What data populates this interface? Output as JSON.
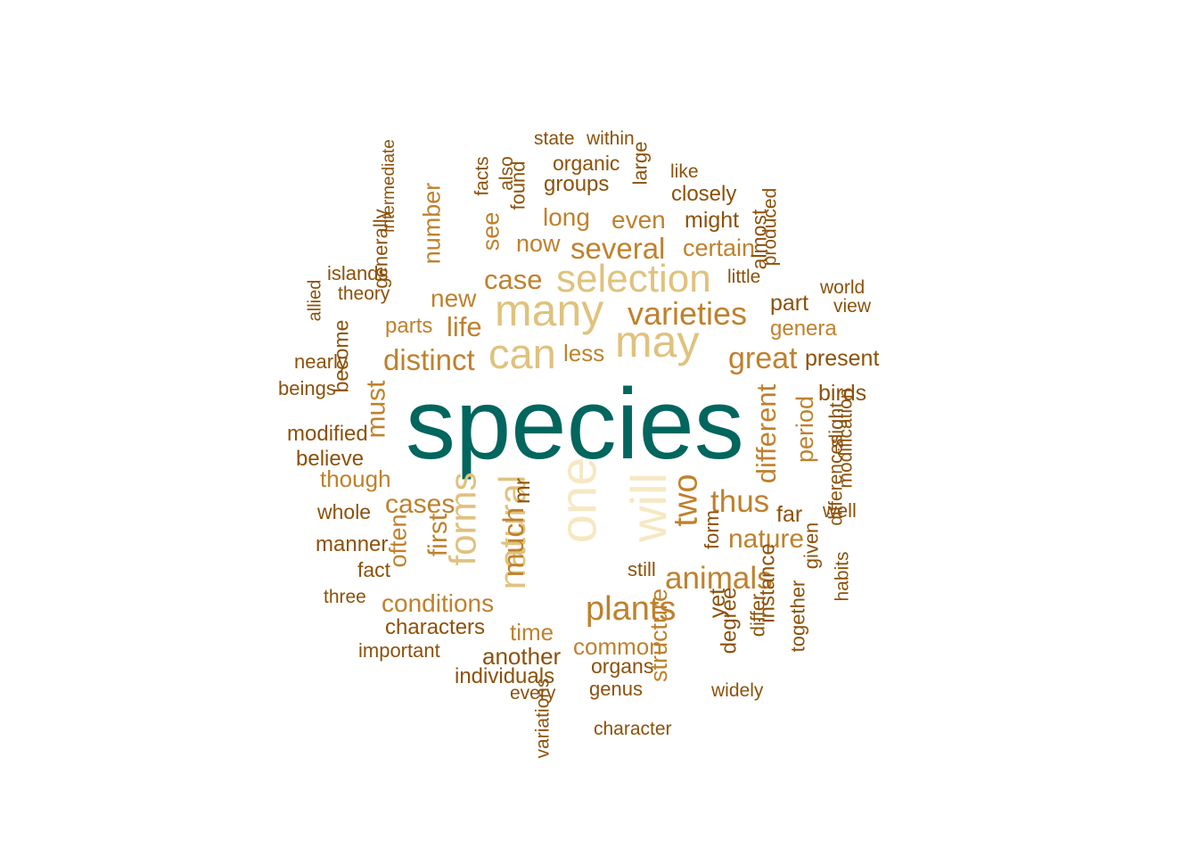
{
  "palette": {
    "teal": "#01665E",
    "pale": "#F6E8C3",
    "light_tan": "#DFC27D",
    "tan": "#BF812D",
    "brown": "#8C510A"
  },
  "words": [
    {
      "text": "species",
      "color": "teal"
    },
    {
      "text": "one",
      "color": "pale"
    },
    {
      "text": "will",
      "color": "pale"
    },
    {
      "text": "may",
      "color": "light_tan"
    },
    {
      "text": "many",
      "color": "light_tan"
    },
    {
      "text": "can",
      "color": "light_tan"
    },
    {
      "text": "selection",
      "color": "light_tan"
    },
    {
      "text": "forms",
      "color": "light_tan"
    },
    {
      "text": "natural",
      "color": "light_tan"
    },
    {
      "text": "two",
      "color": "tan"
    },
    {
      "text": "plants",
      "color": "tan"
    },
    {
      "text": "varieties",
      "color": "tan"
    },
    {
      "text": "animals",
      "color": "tan"
    },
    {
      "text": "thus",
      "color": "tan"
    },
    {
      "text": "great",
      "color": "tan"
    },
    {
      "text": "distinct",
      "color": "tan"
    },
    {
      "text": "different",
      "color": "tan"
    },
    {
      "text": "several",
      "color": "tan"
    },
    {
      "text": "much",
      "color": "tan"
    },
    {
      "text": "nature",
      "color": "tan"
    },
    {
      "text": "cases",
      "color": "tan"
    },
    {
      "text": "case",
      "color": "tan"
    },
    {
      "text": "conditions",
      "color": "tan"
    },
    {
      "text": "life",
      "color": "tan"
    },
    {
      "text": "new",
      "color": "tan"
    },
    {
      "text": "must",
      "color": "tan"
    },
    {
      "text": "first",
      "color": "tan"
    },
    {
      "text": "long",
      "color": "tan"
    },
    {
      "text": "even",
      "color": "tan"
    },
    {
      "text": "number",
      "color": "tan"
    },
    {
      "text": "see",
      "color": "tan"
    },
    {
      "text": "now",
      "color": "tan"
    },
    {
      "text": "certain",
      "color": "tan"
    },
    {
      "text": "period",
      "color": "tan"
    },
    {
      "text": "often",
      "color": "tan"
    },
    {
      "text": "structure",
      "color": "tan"
    },
    {
      "text": "common",
      "color": "tan"
    },
    {
      "text": "time",
      "color": "tan"
    },
    {
      "text": "less",
      "color": "tan"
    },
    {
      "text": "parts",
      "color": "tan"
    },
    {
      "text": "though",
      "color": "tan"
    },
    {
      "text": "genera",
      "color": "tan"
    },
    {
      "text": "mr",
      "color": "brown"
    },
    {
      "text": "another",
      "color": "brown"
    },
    {
      "text": "individuals",
      "color": "brown"
    },
    {
      "text": "organs",
      "color": "brown"
    },
    {
      "text": "genus",
      "color": "brown"
    },
    {
      "text": "every",
      "color": "brown"
    },
    {
      "text": "variations",
      "color": "brown"
    },
    {
      "text": "character",
      "color": "brown"
    },
    {
      "text": "widely",
      "color": "brown"
    },
    {
      "text": "yet",
      "color": "brown"
    },
    {
      "text": "degree",
      "color": "brown"
    },
    {
      "text": "differ",
      "color": "brown"
    },
    {
      "text": "instance",
      "color": "brown"
    },
    {
      "text": "together",
      "color": "brown"
    },
    {
      "text": "given",
      "color": "brown"
    },
    {
      "text": "habits",
      "color": "brown"
    },
    {
      "text": "differences",
      "color": "brown"
    },
    {
      "text": "modification",
      "color": "brown"
    },
    {
      "text": "slight",
      "color": "brown"
    },
    {
      "text": "birds",
      "color": "brown"
    },
    {
      "text": "well",
      "color": "brown"
    },
    {
      "text": "far",
      "color": "brown"
    },
    {
      "text": "form",
      "color": "brown"
    },
    {
      "text": "still",
      "color": "brown"
    },
    {
      "text": "present",
      "color": "brown"
    },
    {
      "text": "part",
      "color": "brown"
    },
    {
      "text": "world",
      "color": "brown"
    },
    {
      "text": "view",
      "color": "brown"
    },
    {
      "text": "almost",
      "color": "brown"
    },
    {
      "text": "produced",
      "color": "brown"
    },
    {
      "text": "little",
      "color": "brown"
    },
    {
      "text": "might",
      "color": "brown"
    },
    {
      "text": "closely",
      "color": "brown"
    },
    {
      "text": "like",
      "color": "brown"
    },
    {
      "text": "large",
      "color": "brown"
    },
    {
      "text": "state",
      "color": "brown"
    },
    {
      "text": "within",
      "color": "brown"
    },
    {
      "text": "organic",
      "color": "brown"
    },
    {
      "text": "groups",
      "color": "brown"
    },
    {
      "text": "found",
      "color": "brown"
    },
    {
      "text": "also",
      "color": "brown"
    },
    {
      "text": "facts",
      "color": "brown"
    },
    {
      "text": "intermediate",
      "color": "brown"
    },
    {
      "text": "generally",
      "color": "brown"
    },
    {
      "text": "islands",
      "color": "brown"
    },
    {
      "text": "theory",
      "color": "brown"
    },
    {
      "text": "allied",
      "color": "brown"
    },
    {
      "text": "become",
      "color": "brown"
    },
    {
      "text": "nearly",
      "color": "brown"
    },
    {
      "text": "beings",
      "color": "brown"
    },
    {
      "text": "modified",
      "color": "brown"
    },
    {
      "text": "believe",
      "color": "brown"
    },
    {
      "text": "whole",
      "color": "brown"
    },
    {
      "text": "manner",
      "color": "brown"
    },
    {
      "text": "fact",
      "color": "brown"
    },
    {
      "text": "three",
      "color": "brown"
    },
    {
      "text": "characters",
      "color": "brown"
    },
    {
      "text": "important",
      "color": "brown"
    }
  ]
}
